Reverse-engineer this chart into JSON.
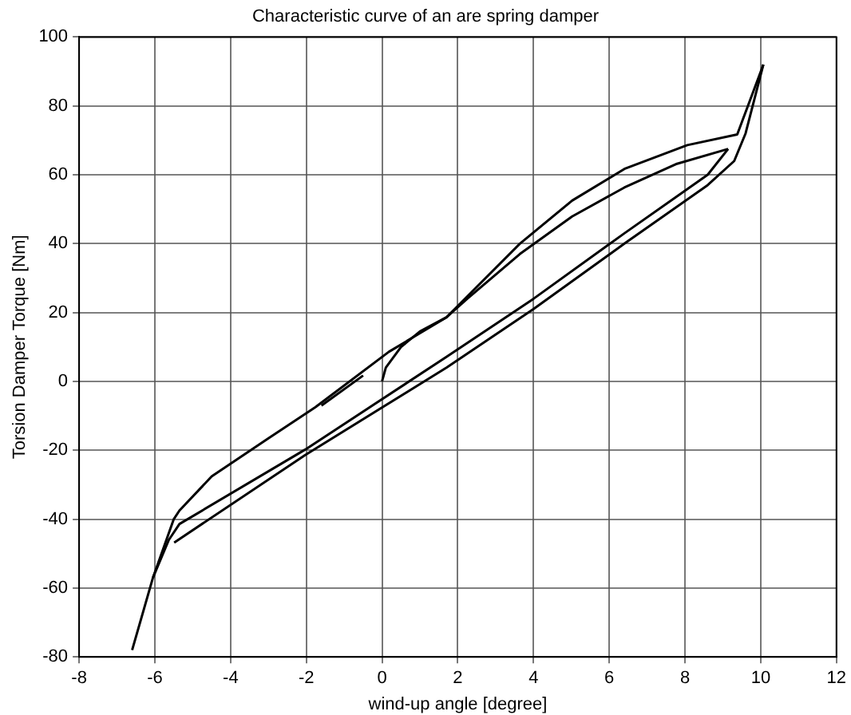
{
  "chart_data": {
    "type": "line",
    "title": "Characteristic curve of an are spring damper",
    "xlabel": "wind-up angle [degree]",
    "ylabel": "Torsion Damper Torque [Nm]",
    "xlim": [
      -8,
      12
    ],
    "xticks": [
      -8,
      -6,
      -4,
      -2,
      0,
      2,
      4,
      6,
      8,
      10,
      12
    ],
    "ylim": [
      -80,
      100
    ],
    "yticks": [
      -80,
      -60,
      -40,
      -20,
      0,
      20,
      40,
      60,
      80,
      100
    ],
    "grid": true,
    "legend": false,
    "marker": "none",
    "line_style": "solid",
    "series": [
      {
        "color": "#000000",
        "x": [
          -6.6,
          -6.05,
          -5.5,
          -5.35,
          -4.5,
          -3,
          -1.76,
          0.18,
          1.7,
          3.64,
          5.02,
          6.4,
          8.06,
          9.38,
          10.07
        ],
        "values": [
          -78,
          -57,
          -40,
          -37.5,
          -27.6,
          -16.5,
          -7.5,
          8.6,
          18.6,
          40,
          52.5,
          61.7,
          68.6,
          71.7,
          92
        ]
      },
      {
        "color": "#000000",
        "x": [
          -1.6,
          -0.5
        ],
        "values": [
          -7,
          1.7
        ]
      },
      {
        "color": "#000000",
        "x": [
          0,
          0.1,
          0.5,
          1,
          1.7,
          2.25,
          3.64,
          5.02,
          6.4,
          7.79,
          9.14
        ],
        "values": [
          0,
          4,
          10,
          14.5,
          18.6,
          24,
          37,
          47.9,
          56.3,
          63.2,
          67.5
        ]
      },
      {
        "color": "#000000",
        "x": [
          9.14,
          8.6,
          6.4,
          4,
          1.7,
          -2.03,
          -5.35,
          -5.63,
          -6.05
        ],
        "values": [
          67.5,
          60,
          43,
          24,
          7.1,
          -19.8,
          -41.4,
          -46,
          -57
        ]
      },
      {
        "color": "#000000",
        "x": [
          -5.49,
          -2.03,
          1.7,
          4,
          6.4,
          8.6,
          9.3,
          9.6,
          10.07
        ],
        "values": [
          -46.8,
          -21.4,
          4,
          21,
          40,
          57,
          64,
          72,
          92
        ]
      }
    ]
  }
}
